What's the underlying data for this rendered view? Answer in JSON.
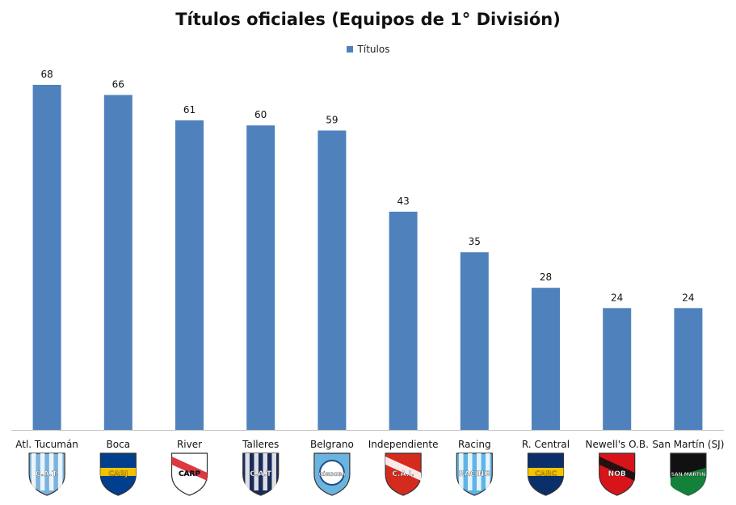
{
  "chart_data": {
    "type": "bar",
    "title": "Títulos oficiales (Equipos de 1° División)",
    "categories": [
      "Atl. Tucumán",
      "Boca",
      "River",
      "Talleres",
      "Belgrano",
      "Independiente",
      "Racing",
      "R. Central",
      "Newell's O.B.",
      "San Martín (SJ)"
    ],
    "series": [
      {
        "name": "Títulos",
        "values": [
          68,
          66,
          61,
          60,
          59,
          43,
          35,
          28,
          24,
          24
        ]
      }
    ],
    "ylim": [
      0,
      68
    ],
    "legend_position": "top",
    "grid": false,
    "bar_color": "#4f81bd",
    "logos": [
      {
        "icon": "atletico-tucuman-crest-icon",
        "text": "C.A.T.",
        "colors": [
          "#7ab3dd",
          "#ffffff"
        ]
      },
      {
        "icon": "boca-juniors-crest-icon",
        "text": "CABJ",
        "colors": [
          "#003e8e",
          "#f2c200"
        ]
      },
      {
        "icon": "river-plate-crest-icon",
        "text": "CARP",
        "colors": [
          "#ffffff",
          "#d8222b"
        ]
      },
      {
        "icon": "talleres-crest-icon",
        "text": "C.A.T",
        "colors": [
          "#1b2b5a",
          "#ffffff"
        ]
      },
      {
        "icon": "belgrano-crest-icon",
        "text": "CÓRDOBA",
        "colors": [
          "#6cb4e0",
          "#1e4f8c"
        ]
      },
      {
        "icon": "independiente-crest-icon",
        "text": "C.A.I.",
        "colors": [
          "#d52b1e",
          "#ffffff"
        ]
      },
      {
        "icon": "racing-crest-icon",
        "text": "RACING",
        "colors": [
          "#5eb4e6",
          "#ffffff"
        ]
      },
      {
        "icon": "rosario-central-crest-icon",
        "text": "CARC",
        "colors": [
          "#0b2f6b",
          "#f4c400"
        ]
      },
      {
        "icon": "newells-crest-icon",
        "text": "NOB",
        "colors": [
          "#d7141a",
          "#111111"
        ]
      },
      {
        "icon": "san-martin-sj-crest-icon",
        "text": "SAN MARTÍN",
        "colors": [
          "#111111",
          "#14813a"
        ]
      }
    ]
  }
}
